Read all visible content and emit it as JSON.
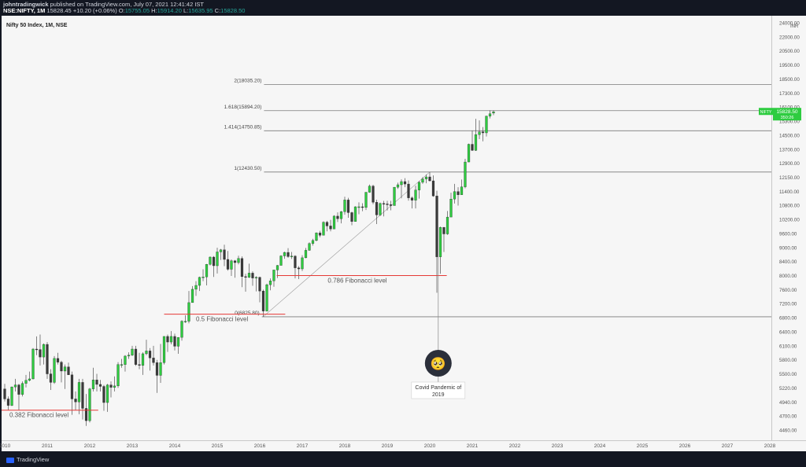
{
  "header": {
    "line1_user": "johntradingwick",
    "line1_rest": "published on TradingView.com, July 07, 2021 12:41:42 IST",
    "symbol": "NSE:NIFTY, 1M",
    "last": "15828.45",
    "change": "+10.20 (+0.06%)",
    "o_label": "O:",
    "o": "15755.05",
    "h_label": "H:",
    "h": "15914.20",
    "l_label": "L:",
    "l": "15635.95",
    "c_label": "C:",
    "c": "15828.50"
  },
  "footer": {
    "brand": "TradingView"
  },
  "chart_data": {
    "type": "candlestick",
    "title": "Nifty 50 Index, 1M, NSE",
    "y_ticks": [
      "4460.00",
      "4700.00",
      "4940.00",
      "5220.00",
      "5500.00",
      "5800.00",
      "6100.00",
      "6400.00",
      "6800.00",
      "7200.00",
      "7600.00",
      "8000.00",
      "8400.00",
      "9000.00",
      "9600.00",
      "10200.00",
      "10800.00",
      "11400.00",
      "12150.00",
      "12900.00",
      "13700.00",
      "14500.00",
      "15300.00",
      "16100.00",
      "17300.00",
      "18500.00",
      "19500.00",
      "20500.00",
      "22000.00",
      "24000.00"
    ],
    "y_ticks_numeric": [
      4460,
      4700,
      4940,
      5220,
      5500,
      5800,
      6100,
      6400,
      6800,
      7200,
      7600,
      8000,
      8400,
      9000,
      9600,
      10200,
      10800,
      11400,
      12150,
      12900,
      13700,
      14500,
      15300,
      16100,
      17300,
      18500,
      19500,
      20500,
      22000,
      24000
    ],
    "x_ticks": [
      "2010",
      "2011",
      "2012",
      "2013",
      "2014",
      "2015",
      "2016",
      "2017",
      "2018",
      "2019",
      "2020",
      "2021",
      "2022",
      "2023",
      "2024",
      "2025",
      "2026",
      "2027",
      "2028"
    ],
    "ylabel_corner": "INR",
    "fib_levels": [
      {
        "label": "0(6825.80)",
        "value": 6825.8
      },
      {
        "label": "1(12430.50)",
        "value": 12430.5
      },
      {
        "label": "1.414(14750.85)",
        "value": 14750.85
      },
      {
        "label": "1.618(15894.20)",
        "value": 15894.2
      },
      {
        "label": "2(18035.20)",
        "value": 18035.2
      }
    ],
    "annotations": [
      {
        "text": "0.382 Fibonacci level",
        "value": 4800
      },
      {
        "text": "0.5 Fibonacci level",
        "value": 6900
      },
      {
        "text": "0.786 Fibonacci level",
        "value": 8000
      }
    ],
    "callout": {
      "line1": "Covid Pandemic of",
      "line2": "2019",
      "emoji": "🥺"
    },
    "price_tag": {
      "symbol": "NIFTY",
      "price": "15828.50",
      "sub": "350:26"
    },
    "candles": [
      [
        2010.0,
        5200,
        5300,
        4950,
        5000
      ],
      [
        2010.083,
        5000,
        5050,
        4800,
        4880
      ],
      [
        2010.167,
        4880,
        5250,
        4870,
        5240
      ],
      [
        2010.25,
        5240,
        5400,
        5150,
        5280
      ],
      [
        2010.333,
        5280,
        5300,
        4800,
        5090
      ],
      [
        2010.417,
        5090,
        5350,
        5050,
        5310
      ],
      [
        2010.5,
        5310,
        5480,
        5230,
        5370
      ],
      [
        2010.583,
        5370,
        5550,
        5350,
        5400
      ],
      [
        2010.667,
        5400,
        6050,
        5390,
        6030
      ],
      [
        2010.75,
        6030,
        6300,
        5900,
        6020
      ],
      [
        2010.833,
        6020,
        6340,
        5680,
        5860
      ],
      [
        2010.917,
        5860,
        6150,
        5700,
        6130
      ],
      [
        2011.0,
        6130,
        6180,
        5400,
        5500
      ],
      [
        2011.083,
        5500,
        5600,
        5180,
        5330
      ],
      [
        2011.167,
        5330,
        5880,
        5300,
        5830
      ],
      [
        2011.25,
        5830,
        5950,
        5700,
        5750
      ],
      [
        2011.333,
        5750,
        5780,
        5330,
        5560
      ],
      [
        2011.417,
        5560,
        5700,
        5200,
        5650
      ],
      [
        2011.5,
        5650,
        5740,
        5480,
        5480
      ],
      [
        2011.583,
        5480,
        5550,
        4720,
        5000
      ],
      [
        2011.667,
        5000,
        5150,
        4800,
        4940
      ],
      [
        2011.75,
        4940,
        5400,
        4730,
        5330
      ],
      [
        2011.833,
        5330,
        5400,
        4640,
        4830
      ],
      [
        2011.917,
        4830,
        5100,
        4530,
        4620
      ],
      [
        2012.0,
        4620,
        5220,
        4590,
        5200
      ],
      [
        2012.083,
        5200,
        5630,
        5150,
        5380
      ],
      [
        2012.167,
        5380,
        5500,
        5150,
        5290
      ],
      [
        2012.25,
        5290,
        5380,
        5150,
        5250
      ],
      [
        2012.333,
        5250,
        5280,
        4790,
        4930
      ],
      [
        2012.417,
        4930,
        5300,
        4770,
        5280
      ],
      [
        2012.5,
        5280,
        5350,
        5030,
        5230
      ],
      [
        2012.583,
        5230,
        5450,
        5150,
        5260
      ],
      [
        2012.667,
        5260,
        5750,
        5220,
        5700
      ],
      [
        2012.75,
        5700,
        5820,
        5630,
        5700
      ],
      [
        2012.833,
        5700,
        5900,
        5550,
        5880
      ],
      [
        2012.917,
        5880,
        5960,
        5820,
        5900
      ],
      [
        2013.0,
        5900,
        6100,
        5880,
        6030
      ],
      [
        2013.083,
        6030,
        6100,
        5670,
        5700
      ],
      [
        2013.167,
        5700,
        5950,
        5600,
        5680
      ],
      [
        2013.25,
        5680,
        5960,
        5480,
        5930
      ],
      [
        2013.333,
        5930,
        6230,
        5900,
        5990
      ],
      [
        2013.417,
        5990,
        6050,
        5570,
        5840
      ],
      [
        2013.5,
        5840,
        6100,
        5680,
        5740
      ],
      [
        2013.583,
        5740,
        5800,
        5120,
        5470
      ],
      [
        2013.667,
        5470,
        6140,
        5320,
        5740
      ],
      [
        2013.75,
        5740,
        6300,
        5700,
        6300
      ],
      [
        2013.833,
        6300,
        6340,
        5970,
        6180
      ],
      [
        2013.917,
        6180,
        6420,
        6130,
        6300
      ],
      [
        2014.0,
        6300,
        6360,
        6000,
        6090
      ],
      [
        2014.083,
        6090,
        6280,
        5930,
        6280
      ],
      [
        2014.167,
        6280,
        6730,
        6210,
        6700
      ],
      [
        2014.25,
        6700,
        6870,
        6650,
        6700
      ],
      [
        2014.333,
        6700,
        7560,
        6640,
        7230
      ],
      [
        2014.417,
        7230,
        7700,
        7230,
        7610
      ],
      [
        2014.5,
        7610,
        7840,
        7420,
        7720
      ],
      [
        2014.583,
        7720,
        7970,
        7560,
        7950
      ],
      [
        2014.667,
        7950,
        8180,
        7840,
        7960
      ],
      [
        2014.75,
        7960,
        8330,
        7720,
        8320
      ],
      [
        2014.833,
        8320,
        8620,
        8290,
        8590
      ],
      [
        2014.917,
        8590,
        8630,
        7960,
        8280
      ],
      [
        2015.0,
        8280,
        8990,
        8060,
        8810
      ],
      [
        2015.083,
        8810,
        8940,
        8470,
        8900
      ],
      [
        2015.167,
        8900,
        9120,
        8270,
        8490
      ],
      [
        2015.25,
        8490,
        8850,
        8140,
        8180
      ],
      [
        2015.333,
        8180,
        8490,
        7990,
        8430
      ],
      [
        2015.417,
        8430,
        8470,
        7940,
        8370
      ],
      [
        2015.5,
        8370,
        8650,
        8320,
        8530
      ],
      [
        2015.583,
        8530,
        8620,
        7670,
        7970
      ],
      [
        2015.667,
        7970,
        8050,
        7540,
        7950
      ],
      [
        2015.75,
        7950,
        8340,
        7930,
        8070
      ],
      [
        2015.833,
        8070,
        8120,
        7710,
        7930
      ],
      [
        2015.917,
        7930,
        7980,
        7550,
        7950
      ],
      [
        2016.0,
        7950,
        7970,
        7240,
        7560
      ],
      [
        2016.083,
        7560,
        7600,
        6830,
        6990
      ],
      [
        2016.167,
        6990,
        7770,
        6980,
        7740
      ],
      [
        2016.25,
        7740,
        7920,
        7580,
        7850
      ],
      [
        2016.333,
        7850,
        8160,
        7680,
        8160
      ],
      [
        2016.417,
        8160,
        8300,
        7930,
        8290
      ],
      [
        2016.5,
        8290,
        8670,
        8290,
        8640
      ],
      [
        2016.583,
        8640,
        8820,
        8520,
        8790
      ],
      [
        2016.667,
        8790,
        8970,
        8560,
        8610
      ],
      [
        2016.75,
        8610,
        8810,
        8510,
        8630
      ],
      [
        2016.833,
        8630,
        8670,
        7920,
        8220
      ],
      [
        2016.917,
        8220,
        8270,
        7900,
        8190
      ],
      [
        2017.0,
        8190,
        8670,
        8130,
        8560
      ],
      [
        2017.083,
        8560,
        8980,
        8540,
        8880
      ],
      [
        2017.167,
        8880,
        9220,
        8860,
        9170
      ],
      [
        2017.25,
        9170,
        9370,
        9080,
        9300
      ],
      [
        2017.333,
        9300,
        9650,
        9260,
        9620
      ],
      [
        2017.417,
        9620,
        9710,
        9440,
        9520
      ],
      [
        2017.5,
        9520,
        10120,
        9540,
        10080
      ],
      [
        2017.583,
        10080,
        10140,
        9690,
        9920
      ],
      [
        2017.667,
        9920,
        10180,
        9690,
        9790
      ],
      [
        2017.75,
        9790,
        10380,
        9830,
        10340
      ],
      [
        2017.833,
        10340,
        10500,
        10090,
        10230
      ],
      [
        2017.917,
        10230,
        10560,
        10030,
        10530
      ],
      [
        2018.0,
        10530,
        11170,
        10400,
        11030
      ],
      [
        2018.083,
        11030,
        11120,
        10270,
        10490
      ],
      [
        2018.167,
        10490,
        10530,
        9950,
        10110
      ],
      [
        2018.25,
        10110,
        10760,
        10110,
        10740
      ],
      [
        2018.333,
        10740,
        10930,
        10420,
        10740
      ],
      [
        2018.417,
        10740,
        10890,
        10550,
        10710
      ],
      [
        2018.5,
        10710,
        11370,
        10600,
        11360
      ],
      [
        2018.583,
        11360,
        11760,
        11340,
        11680
      ],
      [
        2018.667,
        11680,
        11750,
        10850,
        10930
      ],
      [
        2018.75,
        10930,
        11040,
        10000,
        10390
      ],
      [
        2018.833,
        10390,
        10920,
        10340,
        10880
      ],
      [
        2018.917,
        10880,
        10990,
        10330,
        10860
      ],
      [
        2019.0,
        10860,
        10990,
        10580,
        10830
      ],
      [
        2019.083,
        10830,
        10990,
        10590,
        10790
      ],
      [
        2019.167,
        10790,
        11630,
        10820,
        11620
      ],
      [
        2019.25,
        11620,
        11860,
        11530,
        11750
      ],
      [
        2019.333,
        11750,
        12040,
        11100,
        11920
      ],
      [
        2019.417,
        11920,
        12100,
        11620,
        11790
      ],
      [
        2019.5,
        11790,
        11980,
        11000,
        11120
      ],
      [
        2019.583,
        11120,
        11180,
        10670,
        11020
      ],
      [
        2019.667,
        11020,
        11700,
        10670,
        11470
      ],
      [
        2019.75,
        11470,
        11950,
        11090,
        11880
      ],
      [
        2019.833,
        11880,
        12160,
        11800,
        12060
      ],
      [
        2019.917,
        12060,
        12300,
        11830,
        12170
      ],
      [
        2020.0,
        12170,
        12430,
        11930,
        11960
      ],
      [
        2020.083,
        11960,
        12250,
        11170,
        11200
      ],
      [
        2020.167,
        11200,
        11430,
        7510,
        8600
      ],
      [
        2020.25,
        8600,
        9890,
        8050,
        9860
      ],
      [
        2020.333,
        9860,
        9880,
        8810,
        9580
      ],
      [
        2020.417,
        9580,
        10560,
        9540,
        10300
      ],
      [
        2020.5,
        10300,
        11340,
        10300,
        11070
      ],
      [
        2020.583,
        11070,
        11800,
        10880,
        11390
      ],
      [
        2020.667,
        11390,
        11620,
        10790,
        11250
      ],
      [
        2020.75,
        11250,
        12030,
        11350,
        11640
      ],
      [
        2020.833,
        11640,
        13150,
        11560,
        12970
      ],
      [
        2020.917,
        12970,
        14020,
        12960,
        13980
      ],
      [
        2021.0,
        13980,
        14750,
        13600,
        13630
      ],
      [
        2021.083,
        13630,
        15430,
        13600,
        14530
      ],
      [
        2021.167,
        14530,
        15340,
        14270,
        14690
      ],
      [
        2021.25,
        14690,
        14960,
        14150,
        14630
      ],
      [
        2021.333,
        14630,
        15610,
        14420,
        15580
      ],
      [
        2021.417,
        15580,
        15910,
        15450,
        15720
      ],
      [
        2021.5,
        15755,
        15914,
        15636,
        15828
      ]
    ]
  }
}
